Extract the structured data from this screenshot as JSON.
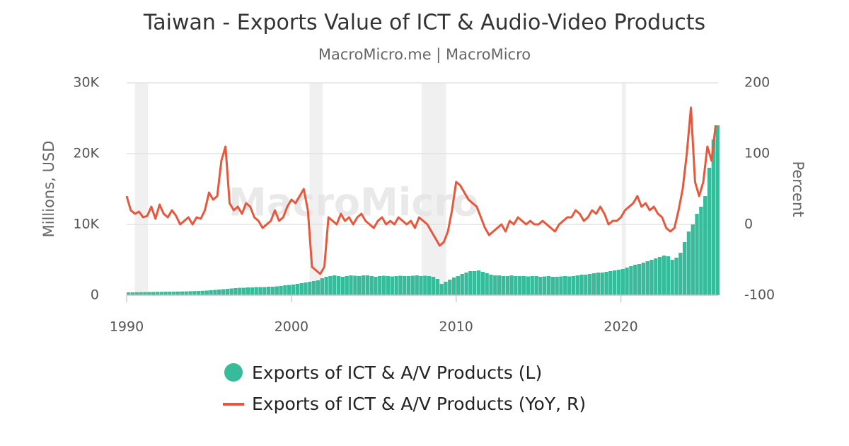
{
  "chart_data": {
    "type": "bar-line",
    "title": "Taiwan - Exports Value of ICT & Audio-Video Products",
    "subtitle": "MacroMicro.me | MacroMicro",
    "watermark": "MacroMicro",
    "y_label": "Millions, USD",
    "y2_label": "Percent",
    "xlim": [
      1990,
      2025.9
    ],
    "xticks": [
      1990,
      2000,
      2010,
      2020
    ],
    "ylim": [
      0,
      30000
    ],
    "yticks": [
      0,
      {
        "value": 10000,
        "label": "10K"
      },
      {
        "value": 20000,
        "label": "20K"
      },
      {
        "value": 30000,
        "label": "30K"
      }
    ],
    "y2lim": [
      -100,
      200
    ],
    "y2ticks": [
      -100,
      0,
      100,
      200
    ],
    "grid": true,
    "legend": "bottom",
    "shaded_periods": [
      [
        1990.5,
        1991.3
      ],
      [
        2001.1,
        2001.9
      ],
      [
        2007.9,
        2009.4
      ],
      [
        2020.05,
        2020.3
      ]
    ],
    "x": [
      1990,
      1990.25,
      1990.5,
      1990.75,
      1991,
      1991.25,
      1991.5,
      1991.75,
      1992,
      1992.25,
      1992.5,
      1992.75,
      1993,
      1993.25,
      1993.5,
      1993.75,
      1994,
      1994.25,
      1994.5,
      1994.75,
      1995,
      1995.25,
      1995.5,
      1995.75,
      1996,
      1996.25,
      1996.5,
      1996.75,
      1997,
      1997.25,
      1997.5,
      1997.75,
      1998,
      1998.25,
      1998.5,
      1998.75,
      1999,
      1999.25,
      1999.5,
      1999.75,
      2000,
      2000.25,
      2000.5,
      2000.75,
      2001,
      2001.25,
      2001.5,
      2001.75,
      2002,
      2002.25,
      2002.5,
      2002.75,
      2003,
      2003.25,
      2003.5,
      2003.75,
      2004,
      2004.25,
      2004.5,
      2004.75,
      2005,
      2005.25,
      2005.5,
      2005.75,
      2006,
      2006.25,
      2006.5,
      2006.75,
      2007,
      2007.25,
      2007.5,
      2007.75,
      2008,
      2008.25,
      2008.5,
      2008.75,
      2009,
      2009.25,
      2009.5,
      2009.75,
      2010,
      2010.25,
      2010.5,
      2010.75,
      2011,
      2011.25,
      2011.5,
      2011.75,
      2012,
      2012.25,
      2012.5,
      2012.75,
      2013,
      2013.25,
      2013.5,
      2013.75,
      2014,
      2014.25,
      2014.5,
      2014.75,
      2015,
      2015.25,
      2015.5,
      2015.75,
      2016,
      2016.25,
      2016.5,
      2016.75,
      2017,
      2017.25,
      2017.5,
      2017.75,
      2018,
      2018.25,
      2018.5,
      2018.75,
      2019,
      2019.25,
      2019.5,
      2019.75,
      2020,
      2020.25,
      2020.5,
      2020.75,
      2021,
      2021.25,
      2021.5,
      2021.75,
      2022,
      2022.25,
      2022.5,
      2022.75,
      2023,
      2023.25,
      2023.5,
      2023.75,
      2024,
      2024.25,
      2024.5,
      2024.75,
      2025,
      2025.25,
      2025.5,
      2025.75
    ],
    "series": [
      {
        "name": "Exports of ICT & A/V Products (L)",
        "color": "#36bc9b",
        "kind": "bar",
        "values": [
          400,
          410,
          420,
          430,
          440,
          450,
          460,
          470,
          480,
          490,
          500,
          510,
          520,
          530,
          540,
          560,
          580,
          600,
          620,
          650,
          700,
          750,
          800,
          850,
          900,
          950,
          1000,
          1050,
          1050,
          1100,
          1100,
          1150,
          1150,
          1150,
          1200,
          1200,
          1250,
          1300,
          1400,
          1450,
          1500,
          1600,
          1700,
          1800,
          1900,
          2000,
          2100,
          2400,
          2600,
          2700,
          2800,
          2700,
          2600,
          2700,
          2800,
          2750,
          2700,
          2800,
          2800,
          2700,
          2600,
          2700,
          2750,
          2700,
          2650,
          2700,
          2750,
          2700,
          2700,
          2750,
          2800,
          2700,
          2750,
          2700,
          2600,
          2300,
          1600,
          1900,
          2200,
          2500,
          2700,
          3000,
          3200,
          3400,
          3400,
          3500,
          3300,
          3100,
          2900,
          2800,
          2800,
          2700,
          2700,
          2800,
          2700,
          2700,
          2700,
          2650,
          2700,
          2700,
          2600,
          2650,
          2700,
          2600,
          2600,
          2650,
          2700,
          2650,
          2700,
          2800,
          2900,
          2900,
          3000,
          3100,
          3200,
          3200,
          3300,
          3400,
          3500,
          3600,
          3700,
          3900,
          4100,
          4300,
          4400,
          4600,
          4800,
          5000,
          5200,
          5400,
          5600,
          5500,
          5000,
          5300,
          6000,
          7500,
          9000,
          10000,
          11500,
          12500,
          14000,
          18000,
          22000,
          24000
        ]
      },
      {
        "name": "Exports of ICT & A/V Products (YoY, R)",
        "color": "#e8573c",
        "kind": "line",
        "axis": "y2",
        "values": [
          40,
          20,
          15,
          18,
          10,
          12,
          25,
          8,
          28,
          15,
          10,
          20,
          12,
          0,
          5,
          10,
          0,
          10,
          8,
          20,
          45,
          35,
          40,
          90,
          110,
          30,
          20,
          25,
          15,
          30,
          25,
          10,
          5,
          -5,
          0,
          5,
          20,
          5,
          10,
          25,
          35,
          30,
          40,
          50,
          20,
          -60,
          -65,
          -70,
          -60,
          10,
          5,
          0,
          15,
          5,
          10,
          0,
          10,
          15,
          5,
          0,
          -5,
          5,
          10,
          0,
          5,
          0,
          10,
          5,
          0,
          5,
          -5,
          10,
          5,
          0,
          -10,
          -20,
          -30,
          -25,
          -10,
          20,
          60,
          55,
          45,
          35,
          30,
          25,
          10,
          -5,
          -15,
          -10,
          -5,
          0,
          -10,
          5,
          0,
          10,
          5,
          0,
          5,
          0,
          0,
          5,
          0,
          -5,
          -10,
          0,
          5,
          10,
          10,
          20,
          15,
          5,
          10,
          20,
          15,
          25,
          15,
          0,
          5,
          5,
          10,
          20,
          25,
          30,
          40,
          25,
          30,
          20,
          25,
          15,
          10,
          -5,
          -10,
          -5,
          20,
          50,
          100,
          165,
          60,
          40,
          60,
          110,
          90,
          140
        ]
      }
    ]
  }
}
